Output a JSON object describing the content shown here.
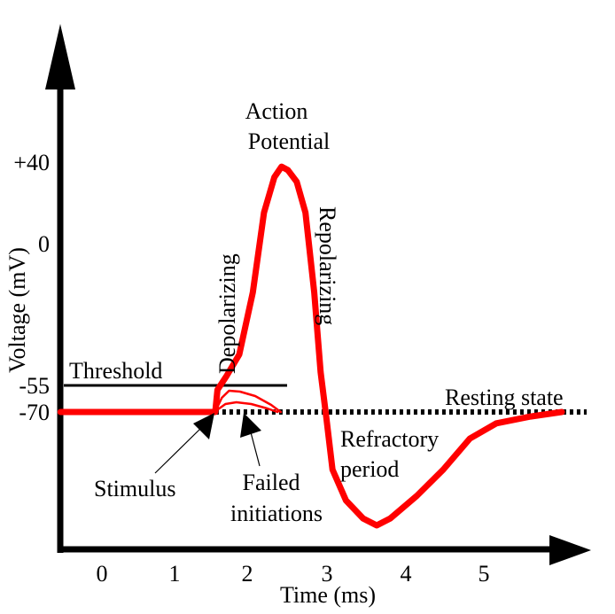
{
  "chart_data": {
    "type": "line",
    "xlabel": "Time (ms)",
    "ylabel": "Voltage (mV)",
    "x_ticks": [
      0,
      1,
      2,
      3,
      4,
      5
    ],
    "y_ticks": [
      {
        "value": 40,
        "label": "+40"
      },
      {
        "value": 0,
        "label": "0"
      },
      {
        "value": -55,
        "label": "-55"
      },
      {
        "value": -70,
        "label": "-70"
      }
    ],
    "grid": false,
    "colors": {
      "signal": "#ff0000",
      "axes": "#000000"
    },
    "series": [
      {
        "role": "action-potential",
        "x": [
          -0.57,
          1.56,
          1.59,
          1.71,
          1.89,
          2.07,
          2.21,
          2.34,
          2.43,
          2.51,
          2.62,
          2.73,
          2.84,
          2.92,
          2.99,
          3.07,
          3.24,
          3.46,
          3.63,
          3.8,
          4.14,
          4.48,
          4.82,
          5.16,
          5.6,
          6.0
        ],
        "y": [
          -70,
          -70,
          -57.5,
          -51.6,
          -43,
          -18.9,
          15.2,
          32.6,
          37.8,
          36.1,
          30.4,
          15.2,
          -18.9,
          -49.8,
          -72,
          -95.4,
          -109,
          -117,
          -120,
          -117,
          -107,
          -95.4,
          -81.7,
          -75,
          -72,
          -70
        ]
      },
      {
        "role": "failed-initiation",
        "x": [
          1.58,
          1.65,
          1.75,
          1.9,
          2.1,
          2.3,
          2.42
        ],
        "y": [
          -68,
          -62,
          -58,
          -58.5,
          -61,
          -66,
          -70
        ]
      },
      {
        "role": "failed-initiation",
        "x": [
          1.58,
          1.7,
          1.85,
          2.05,
          2.25,
          2.38
        ],
        "y": [
          -69,
          -65.5,
          -64.5,
          -65.5,
          -68,
          -70
        ]
      }
    ],
    "reference_lines": [
      {
        "label": "Threshold",
        "value": -55,
        "x_range": [
          -0.55,
          2.5
        ],
        "style": "solid"
      },
      {
        "label": "Resting state",
        "value": -70,
        "x_range": [
          1.56,
          6.6
        ],
        "style": "dotted"
      }
    ],
    "annotations": {
      "action_potential": [
        "Action",
        "Potential"
      ],
      "depolarizing": "Depolarizing",
      "repolarizing": "Repolarizing",
      "refractory": [
        "Refractory",
        "period"
      ],
      "stimulus": "Stimulus",
      "failed": [
        "Failed",
        "initiations"
      ]
    }
  }
}
